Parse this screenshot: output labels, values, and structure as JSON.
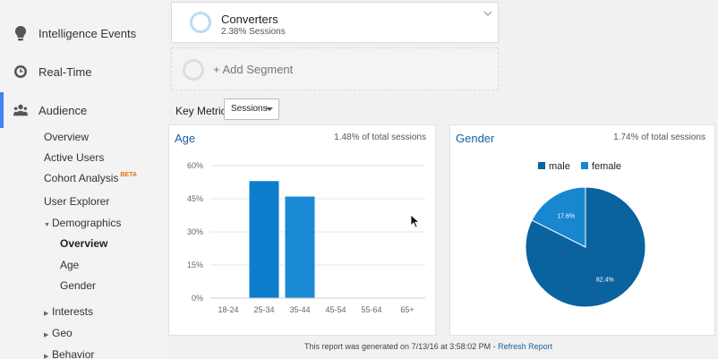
{
  "nav": {
    "intelligence": "Intelligence Events",
    "realtime": "Real-Time",
    "audience": "Audience",
    "sub": {
      "overview": "Overview",
      "active_users": "Active Users",
      "cohort": "Cohort Analysis",
      "cohort_badge": "BETA",
      "user_explorer": "User Explorer",
      "demographics": "Demographics",
      "demo_overview": "Overview",
      "age": "Age",
      "gender": "Gender",
      "interests": "Interests",
      "geo": "Geo",
      "behavior": "Behavior"
    }
  },
  "segment": {
    "name": "Converters",
    "detail": "2.38% Sessions",
    "add_label": "+ Add Segment"
  },
  "key_metric": {
    "label": "Key Metric:",
    "value": "Sessions"
  },
  "age_card": {
    "title": "Age",
    "stat": "1.48% of total sessions"
  },
  "gender_card": {
    "title": "Gender",
    "stat": "1.74% of total sessions"
  },
  "footer": {
    "text": "This report was generated on 7/13/16 at 3:58:02 PM - ",
    "link": "Refresh Report"
  },
  "colors": {
    "accent": "#4285f4",
    "male": "#0a629f",
    "female": "#1887d0",
    "bar": "#1c85d1",
    "title": "#1a5e9e"
  },
  "chart_data": [
    {
      "type": "bar",
      "categories": [
        "18-24",
        "25-34",
        "35-44",
        "45-54",
        "55-64",
        "65+"
      ],
      "values": [
        0,
        53,
        46,
        0,
        0,
        0
      ],
      "yticks": [
        "0%",
        "15%",
        "30%",
        "45%",
        "60%"
      ],
      "ylim": [
        0,
        60
      ],
      "title": "Age",
      "grid": true
    },
    {
      "type": "pie",
      "categories": [
        "male",
        "female"
      ],
      "values": [
        82.4,
        17.6
      ],
      "labels": [
        "82.4%",
        "17.6%"
      ],
      "title": "Gender",
      "legend": "top"
    }
  ]
}
